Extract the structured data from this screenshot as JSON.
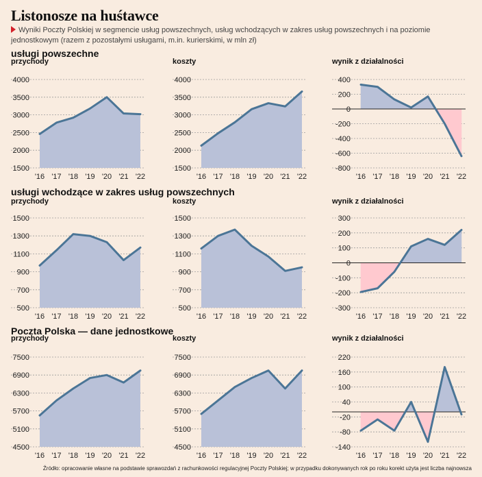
{
  "title": "Listonosze na huśtawce",
  "subtitle": "Wyniki Poczty Polskiej w segmencie usług powszechnych, usług wchodzących w zakres usług powszechnych i na poziomie jednostkowym (razem z pozostałymi usługami, m.in. kurierskimi, w mln zł)",
  "footer": "Źródło: opracowanie własne na podstawie sprawozdań z rachunkowości regulacyjnej Poczty Polskiej; w przypadku dokonywanych rok po roku korekt użyta jest liczba najnowsza",
  "colors": {
    "line": "#4b7596",
    "area": "#b9c1d8",
    "negative": "#ffc9cf",
    "grid": "#9a9a9a"
  },
  "sections": [
    {
      "title": "usługi powszechne"
    },
    {
      "title": "usługi wchodzące w zakres usług powszechnych"
    },
    {
      "title": "Poczta Polska — dane jednostkowe"
    }
  ],
  "chart_data": [
    {
      "type": "area",
      "section": 0,
      "label": "przychody",
      "categories": [
        "'16",
        "'17",
        "'18",
        "'19",
        "'20",
        "'21",
        "'22"
      ],
      "values": [
        2460,
        2780,
        2920,
        3180,
        3500,
        3040,
        3020
      ],
      "ylim": [
        1500,
        4000
      ],
      "yticks": [
        1500,
        2000,
        2500,
        3000,
        3500,
        4000
      ]
    },
    {
      "type": "area",
      "section": 0,
      "label": "koszty",
      "categories": [
        "'16",
        "'17",
        "'18",
        "'19",
        "'20",
        "'21",
        "'22"
      ],
      "values": [
        2130,
        2480,
        2790,
        3160,
        3330,
        3240,
        3660
      ],
      "ylim": [
        1500,
        4000
      ],
      "yticks": [
        1500,
        2000,
        2500,
        3000,
        3500,
        4000
      ]
    },
    {
      "type": "area",
      "section": 0,
      "label": "wynik z działalności",
      "categories": [
        "'16",
        "'17",
        "'18",
        "'19",
        "'20",
        "'21",
        "'22"
      ],
      "values": [
        330,
        300,
        130,
        20,
        170,
        -200,
        -640
      ],
      "ylim": [
        -800,
        400
      ],
      "yticks": [
        -800,
        -600,
        -400,
        -200,
        0,
        200,
        400
      ]
    },
    {
      "type": "area",
      "section": 1,
      "label": "przychody",
      "categories": [
        "'16",
        "'17",
        "'18",
        "'19",
        "'20",
        "'21",
        "'22"
      ],
      "values": [
        970,
        1140,
        1320,
        1300,
        1230,
        1030,
        1170
      ],
      "ylim": [
        500,
        1500
      ],
      "yticks": [
        500,
        700,
        900,
        1100,
        1300,
        1500
      ]
    },
    {
      "type": "area",
      "section": 1,
      "label": "koszty",
      "categories": [
        "'16",
        "'17",
        "'18",
        "'19",
        "'20",
        "'21",
        "'22"
      ],
      "values": [
        1160,
        1300,
        1370,
        1190,
        1070,
        910,
        950
      ],
      "ylim": [
        500,
        1500
      ],
      "yticks": [
        500,
        700,
        900,
        1100,
        1300,
        1500
      ]
    },
    {
      "type": "area",
      "section": 1,
      "label": "wynik z działalności",
      "categories": [
        "'16",
        "'17",
        "'18",
        "'19",
        "'20",
        "'21",
        "'22"
      ],
      "values": [
        -195,
        -170,
        -60,
        110,
        160,
        120,
        220
      ],
      "ylim": [
        -300,
        300
      ],
      "yticks": [
        -300,
        -200,
        -100,
        0,
        100,
        200,
        300
      ]
    },
    {
      "type": "area",
      "section": 2,
      "label": "przychody",
      "categories": [
        "'16",
        "'17",
        "'18",
        "'19",
        "'20",
        "'21",
        "'22"
      ],
      "values": [
        5550,
        6050,
        6450,
        6800,
        6900,
        6650,
        7050
      ],
      "ylim": [
        4500,
        7500
      ],
      "yticks": [
        4500,
        5100,
        5700,
        6300,
        6900,
        7500
      ]
    },
    {
      "type": "area",
      "section": 2,
      "label": "koszty",
      "categories": [
        "'16",
        "'17",
        "'18",
        "'19",
        "'20",
        "'21",
        "'22"
      ],
      "values": [
        5600,
        6050,
        6500,
        6800,
        7050,
        6450,
        7050
      ],
      "ylim": [
        4500,
        7500
      ],
      "yticks": [
        4500,
        5100,
        5700,
        6300,
        6900,
        7500
      ]
    },
    {
      "type": "area",
      "section": 2,
      "label": "wynik z działalności",
      "categories": [
        "'16",
        "'17",
        "'18",
        "'19",
        "'20",
        "'21",
        "'22"
      ],
      "values": [
        -75,
        -30,
        -75,
        40,
        -120,
        180,
        -10
      ],
      "ylim": [
        -140,
        220
      ],
      "yticks": [
        -140,
        -80,
        -20,
        40,
        100,
        160,
        220
      ],
      "baseline": 0
    }
  ]
}
